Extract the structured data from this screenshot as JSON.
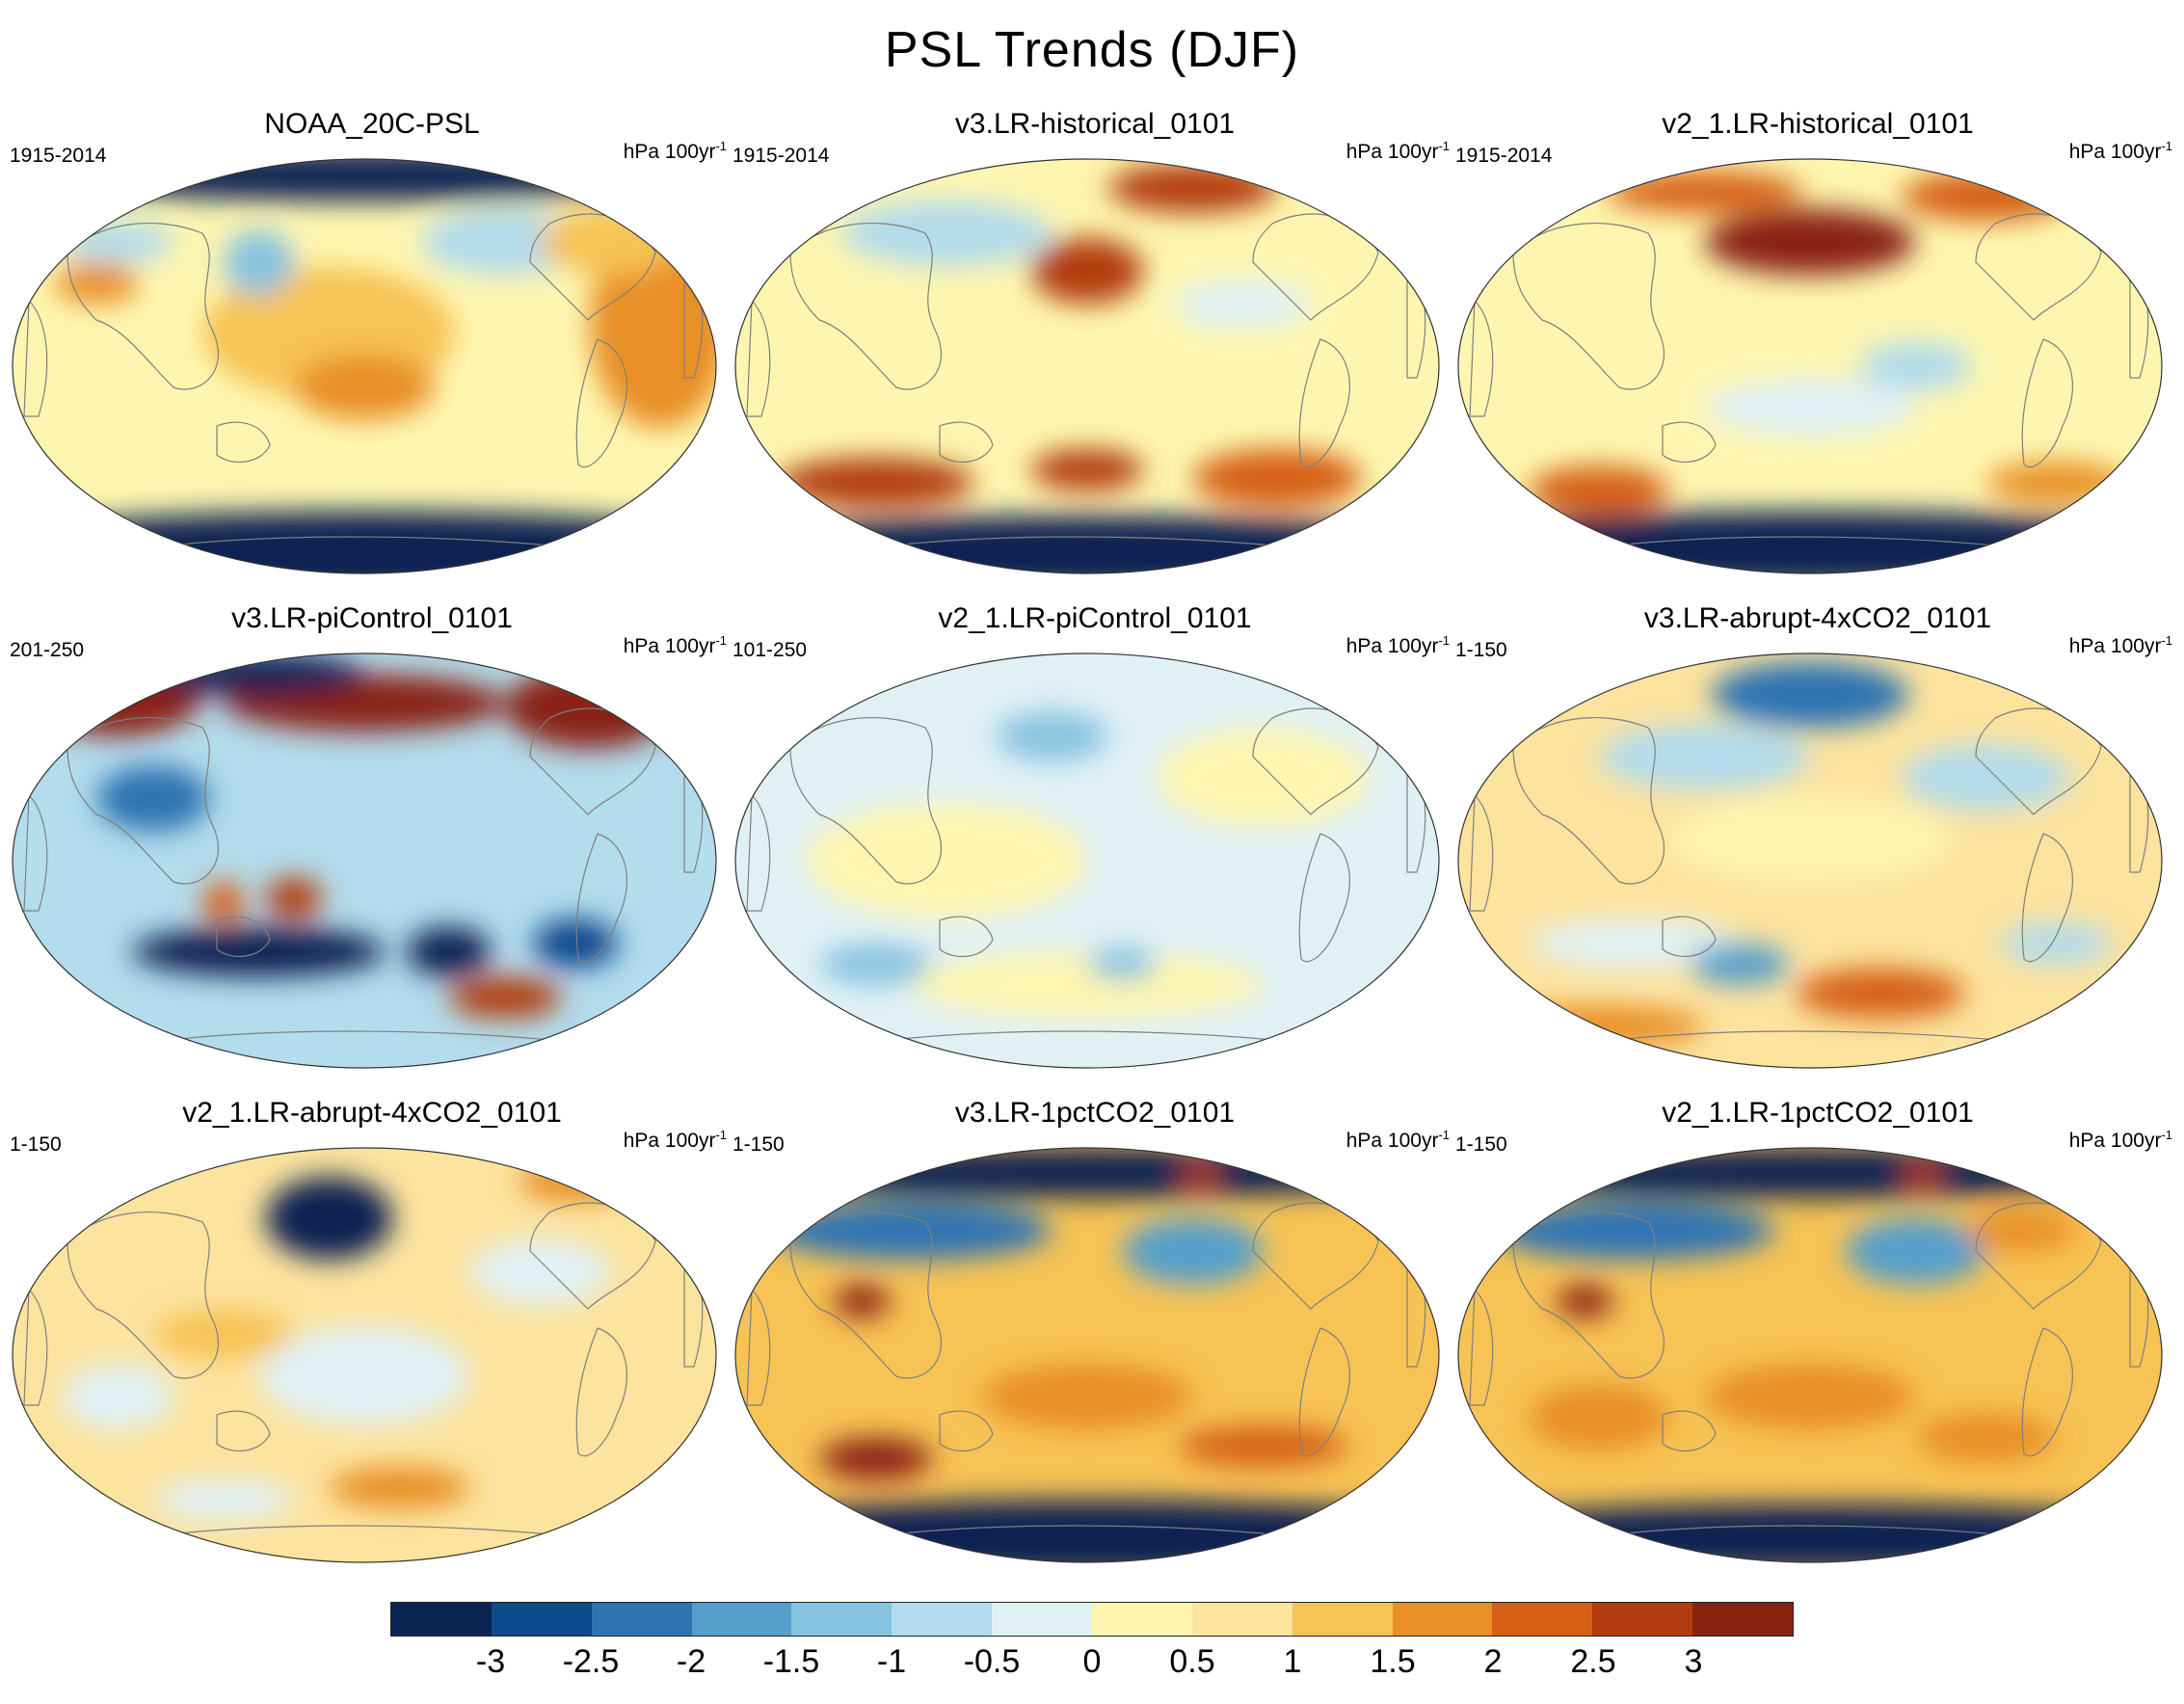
{
  "title": "PSL Trends (DJF)",
  "units_text": "hPa 100yr",
  "units_exp": "-1",
  "colorbar": {
    "colors": [
      "#0c2452",
      "#0d4a8e",
      "#2f73b3",
      "#559fcc",
      "#86c3e0",
      "#b3dcec",
      "#e0f1f5",
      "#fef6b0",
      "#fce39e",
      "#f7c355",
      "#e88f28",
      "#d66015",
      "#b23c0d",
      "#8a2212"
    ],
    "labels": [
      "-3",
      "-2.5",
      "-2",
      "-1.5",
      "-1",
      "-0.5",
      "0",
      "0.5",
      "1",
      "1.5",
      "2",
      "2.5",
      "3"
    ]
  },
  "panels": [
    {
      "title": "NOAA_20C-PSL",
      "period": "1915-2014",
      "background_level": 7,
      "blobs": [
        [
          0.5,
          0.95,
          0.6,
          0.1,
          0
        ],
        [
          0.5,
          0.04,
          0.5,
          0.06,
          0
        ],
        [
          0.45,
          0.42,
          0.18,
          0.16,
          9
        ],
        [
          0.5,
          0.55,
          0.1,
          0.08,
          10
        ],
        [
          0.15,
          0.2,
          0.08,
          0.05,
          5
        ],
        [
          0.12,
          0.3,
          0.06,
          0.05,
          10
        ],
        [
          0.35,
          0.25,
          0.05,
          0.08,
          4
        ],
        [
          0.92,
          0.4,
          0.1,
          0.25,
          10
        ],
        [
          0.7,
          0.2,
          0.12,
          0.08,
          5
        ],
        [
          0.85,
          0.2,
          0.1,
          0.08,
          9
        ]
      ]
    },
    {
      "title": "v3.LR-historical_0101",
      "period": "1915-2014",
      "background_level": 7,
      "blobs": [
        [
          0.5,
          0.95,
          0.6,
          0.09,
          0
        ],
        [
          0.2,
          0.78,
          0.14,
          0.06,
          12
        ],
        [
          0.77,
          0.77,
          0.12,
          0.07,
          11
        ],
        [
          0.5,
          0.75,
          0.08,
          0.05,
          12
        ],
        [
          0.5,
          0.27,
          0.08,
          0.08,
          12
        ],
        [
          0.65,
          0.07,
          0.12,
          0.06,
          12
        ],
        [
          0.3,
          0.18,
          0.15,
          0.08,
          5
        ],
        [
          0.72,
          0.35,
          0.1,
          0.06,
          6
        ]
      ]
    },
    {
      "title": "v2_1.LR-historical_0101",
      "period": "1915-2014",
      "background_level": 7,
      "blobs": [
        [
          0.5,
          0.94,
          0.6,
          0.09,
          0
        ],
        [
          0.5,
          0.2,
          0.15,
          0.08,
          13
        ],
        [
          0.35,
          0.08,
          0.14,
          0.05,
          11
        ],
        [
          0.75,
          0.09,
          0.12,
          0.06,
          11
        ],
        [
          0.2,
          0.8,
          0.1,
          0.06,
          11
        ],
        [
          0.85,
          0.78,
          0.1,
          0.05,
          10
        ],
        [
          0.65,
          0.5,
          0.08,
          0.06,
          5
        ],
        [
          0.5,
          0.6,
          0.15,
          0.07,
          6
        ]
      ]
    },
    {
      "title": "v3.LR-piControl_0101",
      "period": "201-250",
      "background_level": 5,
      "blobs": [
        [
          0.5,
          0.12,
          0.2,
          0.07,
          13
        ],
        [
          0.15,
          0.1,
          0.12,
          0.1,
          13
        ],
        [
          0.82,
          0.13,
          0.12,
          0.1,
          13
        ],
        [
          0.35,
          0.05,
          0.15,
          0.05,
          0
        ],
        [
          0.35,
          0.72,
          0.18,
          0.06,
          0
        ],
        [
          0.62,
          0.72,
          0.06,
          0.06,
          0
        ],
        [
          0.4,
          0.59,
          0.04,
          0.05,
          12
        ],
        [
          0.3,
          0.6,
          0.03,
          0.05,
          11
        ],
        [
          0.7,
          0.83,
          0.08,
          0.05,
          12
        ],
        [
          0.2,
          0.35,
          0.08,
          0.08,
          2
        ],
        [
          0.8,
          0.7,
          0.06,
          0.06,
          1
        ]
      ]
    },
    {
      "title": "v2_1.LR-piControl_0101",
      "period": "101-250",
      "background_level": 6,
      "blobs": [
        [
          0.3,
          0.5,
          0.2,
          0.14,
          7
        ],
        [
          0.75,
          0.3,
          0.15,
          0.12,
          7
        ],
        [
          0.5,
          0.8,
          0.25,
          0.08,
          7
        ],
        [
          0.45,
          0.2,
          0.08,
          0.06,
          4
        ],
        [
          0.2,
          0.75,
          0.08,
          0.05,
          4
        ],
        [
          0.55,
          0.75,
          0.05,
          0.04,
          4
        ]
      ]
    },
    {
      "title": "v3.LR-abrupt-4xCO2_0101",
      "period": "1-150",
      "background_level": 8,
      "blobs": [
        [
          0.5,
          0.1,
          0.14,
          0.08,
          2
        ],
        [
          0.35,
          0.25,
          0.15,
          0.08,
          5
        ],
        [
          0.75,
          0.3,
          0.12,
          0.08,
          5
        ],
        [
          0.25,
          0.7,
          0.15,
          0.06,
          6
        ],
        [
          0.4,
          0.75,
          0.07,
          0.05,
          3
        ],
        [
          0.6,
          0.82,
          0.12,
          0.06,
          11
        ],
        [
          0.85,
          0.7,
          0.08,
          0.05,
          5
        ],
        [
          0.2,
          0.9,
          0.15,
          0.05,
          10
        ],
        [
          0.5,
          0.45,
          0.2,
          0.1,
          7
        ]
      ]
    },
    {
      "title": "v2_1.LR-abrupt-4xCO2_0101",
      "period": "1-150",
      "background_level": 8,
      "blobs": [
        [
          0.45,
          0.17,
          0.09,
          0.1,
          0
        ],
        [
          0.5,
          0.55,
          0.15,
          0.12,
          6
        ],
        [
          0.75,
          0.3,
          0.1,
          0.08,
          6
        ],
        [
          0.15,
          0.6,
          0.08,
          0.08,
          6
        ],
        [
          0.3,
          0.85,
          0.1,
          0.05,
          6
        ],
        [
          0.55,
          0.82,
          0.1,
          0.05,
          10
        ],
        [
          0.3,
          0.45,
          0.1,
          0.06,
          9
        ],
        [
          0.8,
          0.08,
          0.08,
          0.05,
          10
        ]
      ]
    },
    {
      "title": "v3.LR-1pctCO2_0101",
      "period": "1-150",
      "background_level": 9,
      "blobs": [
        [
          0.5,
          0.94,
          0.6,
          0.09,
          0
        ],
        [
          0.5,
          0.06,
          0.5,
          0.06,
          0
        ],
        [
          0.25,
          0.2,
          0.2,
          0.07,
          2
        ],
        [
          0.65,
          0.25,
          0.1,
          0.08,
          3
        ],
        [
          0.18,
          0.37,
          0.04,
          0.04,
          13
        ],
        [
          0.2,
          0.75,
          0.08,
          0.05,
          13
        ],
        [
          0.5,
          0.6,
          0.15,
          0.08,
          10
        ],
        [
          0.75,
          0.72,
          0.12,
          0.05,
          11
        ],
        [
          0.66,
          0.07,
          0.03,
          0.03,
          12
        ]
      ]
    },
    {
      "title": "v2_1.LR-1pctCO2_0101",
      "period": "1-150",
      "background_level": 9,
      "blobs": [
        [
          0.5,
          0.94,
          0.6,
          0.08,
          0
        ],
        [
          0.5,
          0.06,
          0.5,
          0.06,
          0
        ],
        [
          0.25,
          0.2,
          0.2,
          0.07,
          2
        ],
        [
          0.65,
          0.25,
          0.1,
          0.08,
          3
        ],
        [
          0.18,
          0.37,
          0.04,
          0.04,
          13
        ],
        [
          0.2,
          0.65,
          0.1,
          0.08,
          10
        ],
        [
          0.5,
          0.6,
          0.15,
          0.08,
          10
        ],
        [
          0.75,
          0.7,
          0.1,
          0.06,
          10
        ],
        [
          0.66,
          0.07,
          0.03,
          0.03,
          12
        ],
        [
          0.8,
          0.2,
          0.08,
          0.05,
          10
        ]
      ]
    }
  ]
}
